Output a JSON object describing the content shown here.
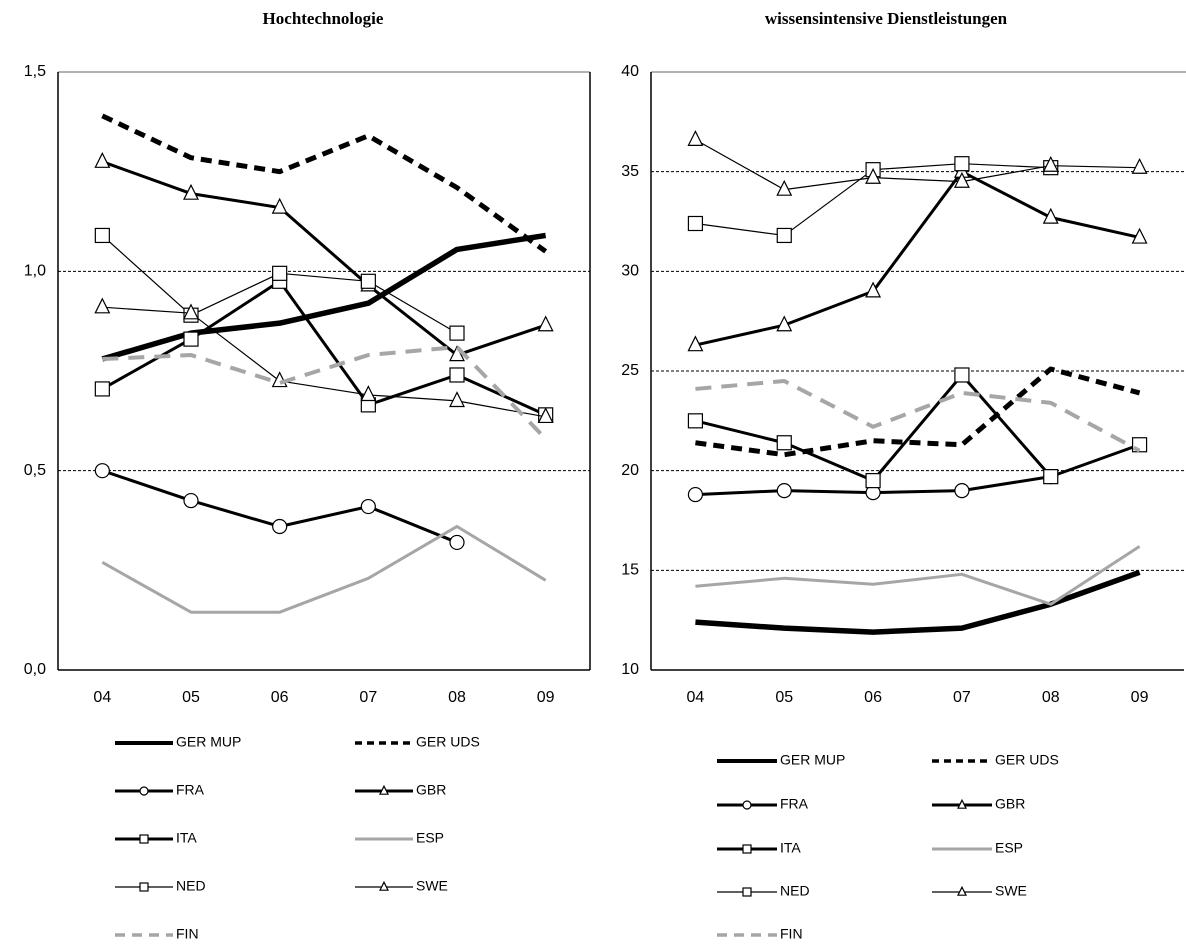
{
  "chart_data": [
    {
      "type": "line",
      "title": "Hochtechnologie",
      "categories": [
        "04",
        "05",
        "06",
        "07",
        "08",
        "09"
      ],
      "ylim": [
        0,
        1.5
      ],
      "yticks": [
        {
          "value": 0,
          "label": "0,0"
        },
        {
          "value": 0.5,
          "label": "0,5"
        },
        {
          "value": 1.0,
          "label": "1,0"
        },
        {
          "value": 1.5,
          "label": "1,5"
        }
      ],
      "grid": true,
      "series": [
        {
          "name": "GER MUP",
          "color": "#000000",
          "values": [
            0.78,
            0.845,
            0.87,
            0.92,
            1.055,
            1.09
          ]
        },
        {
          "name": "GER UDS",
          "color": "#000000",
          "values": [
            1.39,
            1.285,
            1.25,
            1.34,
            1.21,
            1.05
          ]
        },
        {
          "name": "FRA",
          "color": "#000000",
          "values": [
            0.5,
            0.425,
            0.36,
            0.41,
            0.32,
            null
          ]
        },
        {
          "name": "GBR",
          "color": "#000000",
          "values": [
            1.275,
            1.195,
            1.16,
            0.965,
            0.79,
            0.865
          ]
        },
        {
          "name": "ITA",
          "color": "#000000",
          "values": [
            0.705,
            0.83,
            0.975,
            0.665,
            0.74,
            0.64
          ]
        },
        {
          "name": "ESP",
          "color": "#a6a6a6",
          "values": [
            0.27,
            0.145,
            0.145,
            0.23,
            0.36,
            0.225
          ]
        },
        {
          "name": "NED",
          "color": "#000000",
          "values": [
            1.09,
            0.89,
            0.995,
            0.975,
            0.845,
            null
          ]
        },
        {
          "name": "SWE",
          "color": "#000000",
          "values": [
            0.91,
            0.895,
            0.725,
            0.69,
            0.675,
            0.635
          ]
        },
        {
          "name": "FIN",
          "color": "#a6a6a6",
          "values": [
            0.78,
            0.79,
            0.72,
            0.79,
            0.81,
            0.58
          ]
        }
      ]
    },
    {
      "type": "line",
      "title": "wissensintensive Dienstleistungen",
      "categories": [
        "04",
        "05",
        "06",
        "07",
        "08",
        "09"
      ],
      "ylim": [
        10,
        40
      ],
      "yticks": [
        10,
        15,
        20,
        25,
        30,
        35,
        40
      ],
      "grid": true,
      "series": [
        {
          "name": "GER MUP",
          "color": "#000000",
          "values": [
            12.4,
            12.1,
            11.9,
            12.1,
            13.3,
            14.9
          ]
        },
        {
          "name": "GER UDS",
          "color": "#000000",
          "values": [
            21.4,
            20.8,
            21.5,
            21.3,
            25.1,
            23.9
          ]
        },
        {
          "name": "FRA",
          "color": "#000000",
          "values": [
            18.8,
            19.0,
            18.9,
            19.0,
            19.7,
            null
          ]
        },
        {
          "name": "GBR",
          "color": "#000000",
          "values": [
            26.3,
            27.3,
            29.0,
            35.0,
            32.7,
            31.7
          ]
        },
        {
          "name": "ITA",
          "color": "#000000",
          "values": [
            22.5,
            21.4,
            19.5,
            24.8,
            19.7,
            21.3
          ]
        },
        {
          "name": "ESP",
          "color": "#a6a6a6",
          "values": [
            14.2,
            14.6,
            14.3,
            14.8,
            13.3,
            16.2
          ]
        },
        {
          "name": "NED",
          "color": "#000000",
          "values": [
            32.4,
            31.8,
            35.1,
            35.4,
            35.2,
            null
          ]
        },
        {
          "name": "SWE",
          "color": "#000000",
          "values": [
            36.6,
            34.1,
            34.7,
            34.5,
            35.3,
            35.2
          ]
        },
        {
          "name": "FIN",
          "color": "#a6a6a6",
          "values": [
            24.1,
            24.5,
            22.2,
            23.9,
            23.4,
            21.0
          ]
        }
      ]
    }
  ]
}
